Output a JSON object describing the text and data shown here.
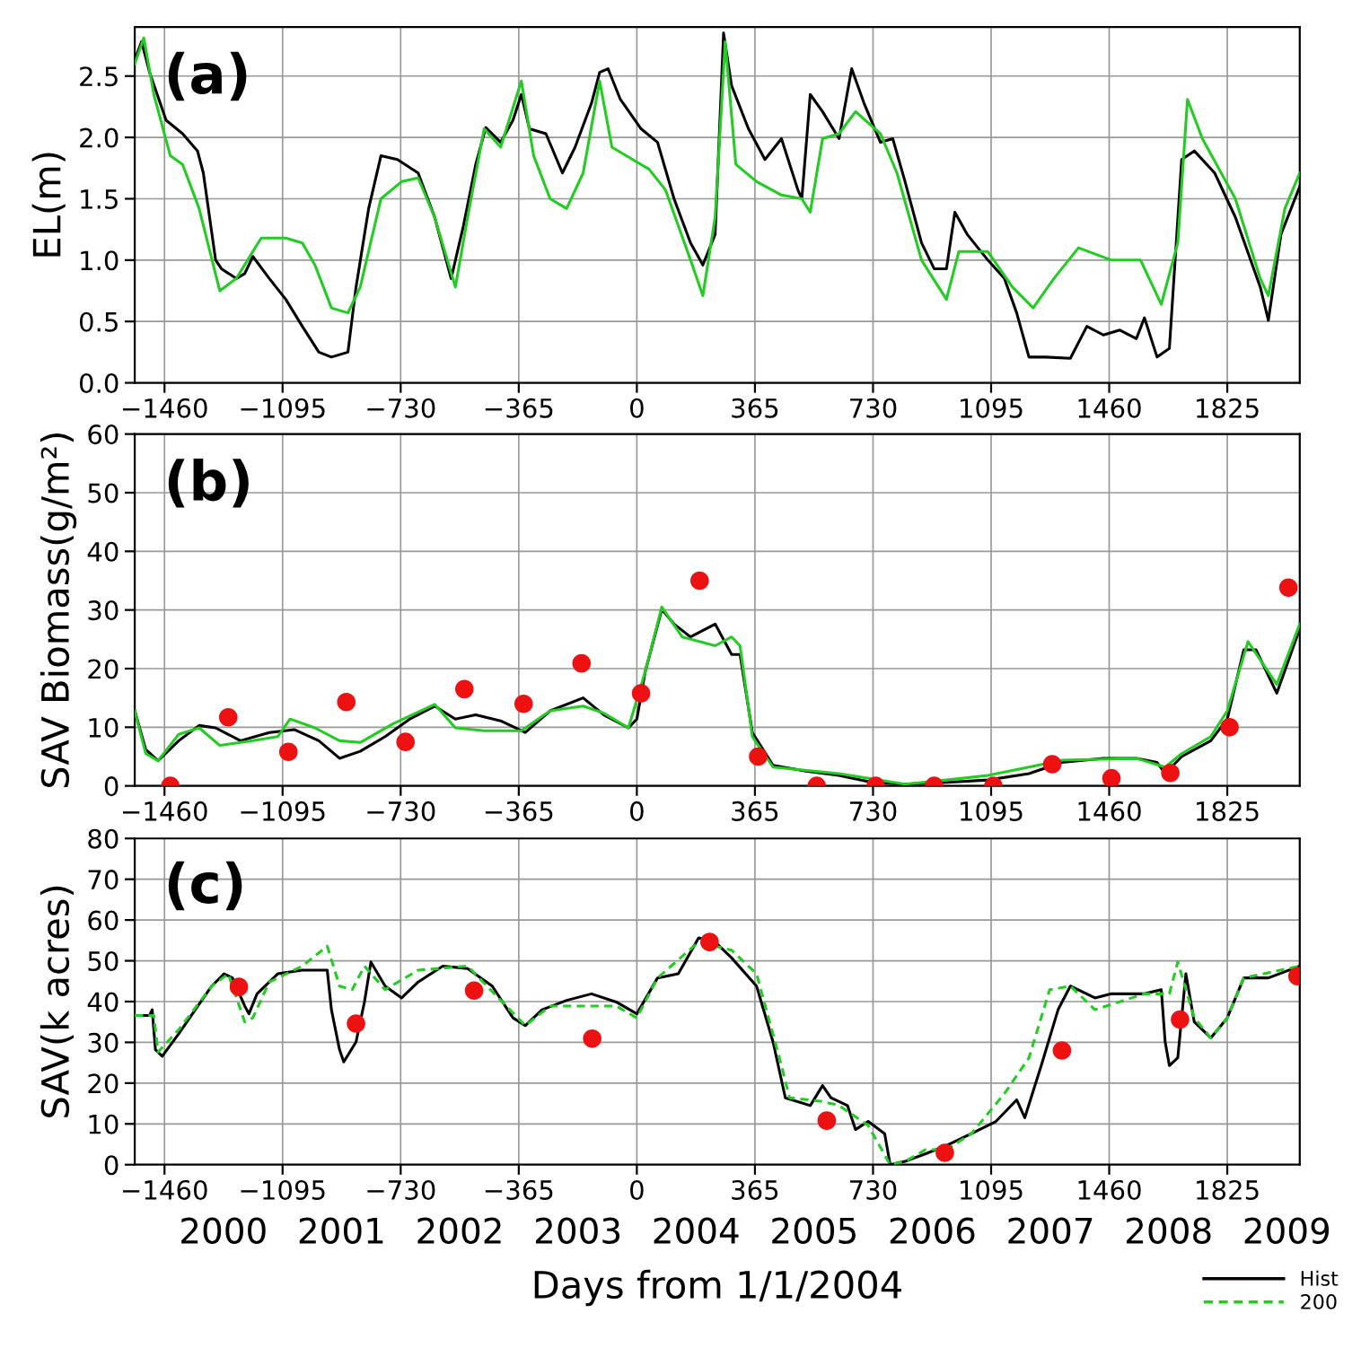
{
  "chart_data": [
    {
      "type": "line",
      "ylabel": "EL(m)",
      "annotations": [
        "(a)"
      ],
      "xlim": [
        -1552,
        2049
      ],
      "ylim": [
        0,
        2.9
      ],
      "xticks": [
        {
          "value": -1460,
          "label": "−1460"
        },
        {
          "value": -1095,
          "label": "−1095"
        },
        {
          "value": -730,
          "label": "−730"
        },
        {
          "value": -365,
          "label": "−365"
        },
        0,
        365,
        730,
        1095,
        1460,
        1825
      ],
      "yticks": [
        {
          "value": 0,
          "label": "0.0"
        },
        0.5,
        {
          "value": 1,
          "label": "1.0"
        },
        1.5,
        {
          "value": 2,
          "label": "2.0"
        },
        2.5
      ],
      "grid": true,
      "series": [
        {
          "color": "#000000",
          "line_style": "solid",
          "x": [
            -1552,
            -1531,
            -1506,
            -1455,
            -1404,
            -1358,
            -1340,
            -1302,
            -1284,
            -1238,
            -1212,
            -1187,
            -1136,
            -1085,
            -1034,
            -983,
            -944,
            -893,
            -868,
            -829,
            -791,
            -740,
            -676,
            -625,
            -574,
            -536,
            -498,
            -467,
            -421,
            -383,
            -357,
            -332,
            -281,
            -230,
            -191,
            -140,
            -115,
            -89,
            -51,
            13,
            64,
            115,
            166,
            204,
            242,
            268,
            293,
            345,
            396,
            447,
            498,
            510,
            536,
            574,
            625,
            664,
            702,
            753,
            791,
            829,
            880,
            919,
            957,
            983,
            1021,
            1085,
            1136,
            1174,
            1212,
            1263,
            1340,
            1391,
            1442,
            1493,
            1544,
            1569,
            1608,
            1646,
            1684,
            1723,
            1786,
            1850,
            1927,
            1952,
            1991,
            2049
          ],
          "values": [
            2.63,
            2.78,
            2.53,
            2.14,
            2.03,
            1.89,
            1.71,
            1.0,
            0.93,
            0.85,
            0.89,
            1.03,
            0.85,
            0.68,
            0.46,
            0.25,
            0.21,
            0.25,
            0.78,
            1.42,
            1.85,
            1.82,
            1.71,
            1.35,
            0.85,
            1.28,
            1.78,
            2.08,
            1.96,
            2.14,
            2.35,
            2.07,
            2.03,
            1.71,
            1.92,
            2.28,
            2.53,
            2.56,
            2.31,
            2.07,
            1.96,
            1.5,
            1.14,
            0.96,
            1.21,
            2.85,
            2.42,
            2.07,
            1.82,
            1.99,
            1.57,
            1.5,
            2.35,
            2.21,
            1.99,
            2.56,
            2.28,
            1.96,
            1.99,
            1.64,
            1.14,
            0.93,
            0.93,
            1.39,
            1.21,
            1.0,
            0.85,
            0.57,
            0.21,
            0.21,
            0.2,
            0.46,
            0.39,
            0.43,
            0.36,
            0.53,
            0.21,
            0.28,
            1.82,
            1.89,
            1.71,
            1.35,
            0.78,
            0.51,
            1.21,
            1.6
          ]
        },
        {
          "color": "#22cc22",
          "line_style": "solid",
          "x": [
            -1552,
            -1524,
            -1493,
            -1442,
            -1404,
            -1353,
            -1289,
            -1238,
            -1187,
            -1161,
            -1085,
            -1034,
            -995,
            -944,
            -893,
            -855,
            -791,
            -727,
            -676,
            -625,
            -561,
            -523,
            -472,
            -421,
            -357,
            -319,
            -268,
            -217,
            -166,
            -115,
            -77,
            -13,
            38,
            89,
            166,
            204,
            242,
            273,
            306,
            370,
            447,
            510,
            536,
            574,
            625,
            676,
            753,
            804,
            880,
            957,
            995,
            1085,
            1161,
            1225,
            1289,
            1365,
            1467,
            1557,
            1621,
            1672,
            1702,
            1748,
            1850,
            1927,
            1952,
            2003,
            2049
          ],
          "values": [
            2.6,
            2.81,
            2.35,
            1.85,
            1.78,
            1.42,
            0.75,
            0.85,
            1.07,
            1.18,
            1.18,
            1.14,
            0.96,
            0.61,
            0.57,
            0.78,
            1.5,
            1.64,
            1.67,
            1.35,
            0.78,
            1.35,
            2.07,
            1.92,
            2.46,
            1.85,
            1.5,
            1.42,
            1.71,
            2.46,
            1.92,
            1.82,
            1.74,
            1.57,
            1.0,
            0.71,
            1.35,
            2.78,
            1.78,
            1.64,
            1.53,
            1.5,
            1.39,
            1.99,
            2.03,
            2.21,
            2.03,
            1.71,
            1.0,
            0.68,
            1.07,
            1.07,
            0.78,
            0.61,
            0.85,
            1.1,
            1.0,
            1.0,
            0.64,
            1.14,
            2.31,
            1.99,
            1.5,
            0.85,
            0.71,
            1.42,
            1.71
          ]
        }
      ]
    },
    {
      "type": "line",
      "ylabel": "SAV Biomass(g/m²)",
      "annotations": [
        "(b)"
      ],
      "xlim": [
        -1552,
        2049
      ],
      "ylim": [
        0,
        60
      ],
      "xticks": [
        {
          "value": -1460,
          "label": "−1460"
        },
        {
          "value": -1095,
          "label": "−1095"
        },
        {
          "value": -730,
          "label": "−730"
        },
        {
          "value": -365,
          "label": "−365"
        },
        0,
        365,
        730,
        1095,
        1460,
        1825
      ],
      "yticks": [
        0,
        10,
        20,
        30,
        40,
        50,
        60
      ],
      "grid": true,
      "series": [
        {
          "color": "#000000",
          "line_style": "solid",
          "x": [
            -1552,
            -1518,
            -1480,
            -1416,
            -1353,
            -1302,
            -1225,
            -1136,
            -1059,
            -983,
            -919,
            -855,
            -778,
            -702,
            -625,
            -561,
            -498,
            -421,
            -345,
            -268,
            -166,
            -102,
            -26,
            0,
            26,
            77,
            115,
            166,
            242,
            293,
            319,
            357,
            421,
            523,
            625,
            727,
            829,
            957,
            1085,
            1212,
            1314,
            1442,
            1544,
            1608,
            1633,
            1684,
            1774,
            1825,
            1876,
            1914,
            1978,
            2049
          ],
          "values": [
            12.8,
            6.2,
            4.3,
            7.7,
            10.3,
            9.9,
            7.7,
            9.1,
            9.6,
            7.7,
            4.7,
            5.9,
            8.4,
            11.4,
            13.6,
            11.4,
            12.1,
            11.1,
            9.1,
            12.8,
            15.0,
            12.1,
            9.9,
            11.4,
            19.5,
            30.1,
            27.6,
            25.4,
            27.6,
            22.4,
            22.4,
            9.1,
            3.5,
            2.5,
            1.8,
            0.6,
            0.3,
            0.6,
            1.0,
            2.1,
            4.0,
            4.7,
            4.7,
            4.0,
            2.1,
            5.0,
            7.7,
            11.4,
            23.2,
            23.2,
            15.8,
            26.8
          ]
        },
        {
          "color": "#22cc22",
          "line_style": "solid",
          "x": [
            -1552,
            -1518,
            -1480,
            -1416,
            -1353,
            -1289,
            -1187,
            -1110,
            -1072,
            -995,
            -919,
            -855,
            -753,
            -625,
            -561,
            -472,
            -357,
            -268,
            -166,
            -102,
            -26,
            26,
            77,
            140,
            242,
            293,
            319,
            357,
            421,
            625,
            829,
            957,
            1085,
            1212,
            1314,
            1544,
            1633,
            1684,
            1774,
            1825,
            1889,
            1978,
            2049
          ],
          "values": [
            12.8,
            5.5,
            4.3,
            8.8,
            9.9,
            6.9,
            7.7,
            8.4,
            11.4,
            9.9,
            7.7,
            7.4,
            10.6,
            13.9,
            9.9,
            9.4,
            9.4,
            12.8,
            13.6,
            12.4,
            9.9,
            19.5,
            30.5,
            25.4,
            23.9,
            25.4,
            23.9,
            8.4,
            3.2,
            2.1,
            0.3,
            1.0,
            1.8,
            3.2,
            4.4,
            4.7,
            3.2,
            5.5,
            8.4,
            12.8,
            24.6,
            17.3,
            27.6
          ]
        },
        {
          "type": "scatter",
          "marker": "circle",
          "color": "#ee1111",
          "x": [
            -1442,
            -1263,
            -1077,
            -898,
            -715,
            -533,
            -350,
            -171,
            13,
            194,
            375,
            556,
            738,
            919,
            1102,
            1284,
            1467,
            1649,
            1832,
            2014
          ],
          "values": [
            0,
            11.7,
            5.8,
            14.3,
            7.5,
            16.5,
            14.0,
            20.9,
            15.8,
            35.0,
            5.0,
            0,
            0,
            0,
            0,
            3.7,
            1.3,
            2.2,
            10.0,
            33.8
          ]
        }
      ]
    },
    {
      "type": "line",
      "ylabel": "SAV(k acres)",
      "xlabel": "Days from 1/1/2004",
      "annotations": [
        "(c)"
      ],
      "xlim": [
        -1552,
        2049
      ],
      "ylim": [
        0,
        80
      ],
      "xticks": [
        {
          "value": -1460,
          "label": "−1460"
        },
        {
          "value": -1095,
          "label": "−1095"
        },
        {
          "value": -730,
          "label": "−730"
        },
        {
          "value": -365,
          "label": "−365"
        },
        0,
        365,
        730,
        1095,
        1460,
        1825
      ],
      "x2lim": [
        1999.25,
        2009.11
      ],
      "x2ticks": [
        2000,
        2001,
        2002,
        2003,
        2004,
        2005,
        2006,
        2007,
        2008,
        2009
      ],
      "yticks": [
        0,
        10,
        20,
        30,
        40,
        50,
        60,
        70,
        80
      ],
      "grid": true,
      "legend": "bottom right",
      "series": [
        {
          "name": "Hist",
          "color": "#000000",
          "line_style": "solid",
          "x": [
            -1552,
            -1506,
            -1498,
            -1488,
            -1467,
            -1416,
            -1365,
            -1314,
            -1276,
            -1250,
            -1212,
            -1199,
            -1174,
            -1110,
            -1034,
            -957,
            -944,
            -919,
            -906,
            -868,
            -842,
            -822,
            -778,
            -727,
            -676,
            -600,
            -523,
            -447,
            -383,
            -345,
            -293,
            -217,
            -140,
            -64,
            0,
            64,
            128,
            191,
            242,
            293,
            370,
            421,
            459,
            536,
            574,
            600,
            651,
            676,
            715,
            766,
            783,
            829,
            893,
            957,
            1034,
            1110,
            1174,
            1199,
            1250,
            1302,
            1340,
            1416,
            1467,
            1569,
            1621,
            1633,
            1646,
            1672,
            1697,
            1723,
            1774,
            1825,
            1876,
            1952,
            2049
          ],
          "values": [
            36.6,
            36.6,
            38.0,
            28.2,
            26.6,
            32.1,
            38.0,
            43.8,
            46.8,
            45.8,
            38.9,
            37.0,
            41.9,
            46.8,
            47.7,
            47.7,
            38.0,
            28.2,
            25.2,
            30.1,
            39.9,
            49.7,
            43.8,
            40.9,
            44.8,
            48.7,
            48.1,
            43.8,
            36.0,
            34.1,
            38.0,
            40.3,
            41.9,
            39.9,
            37.0,
            45.8,
            46.8,
            55.6,
            54.6,
            50.7,
            43.8,
            30.1,
            16.4,
            14.5,
            19.4,
            16.4,
            14.5,
            8.6,
            10.6,
            7.6,
            0,
            0.8,
            2.7,
            4.7,
            7.6,
            10.6,
            15.9,
            11.5,
            24.3,
            38.0,
            43.8,
            40.9,
            41.9,
            41.9,
            42.9,
            30.1,
            24.3,
            26.2,
            46.8,
            35.0,
            31.1,
            36.0,
            45.8,
            45.8,
            48.7
          ]
        },
        {
          "name": "200",
          "color": "#22cc22",
          "line_style": "dashed",
          "x": [
            -1552,
            -1493,
            -1480,
            -1416,
            -1314,
            -1263,
            -1212,
            -1187,
            -1136,
            -1034,
            -957,
            -919,
            -880,
            -842,
            -778,
            -676,
            -523,
            -345,
            -268,
            -140,
            -64,
            0,
            64,
            191,
            293,
            370,
            447,
            472,
            574,
            625,
            715,
            783,
            829,
            893,
            957,
            1034,
            1136,
            1212,
            1276,
            1340,
            1416,
            1569,
            1646,
            1672,
            1723,
            1774,
            1825,
            1876,
            2049
          ],
          "values": [
            36.6,
            36.6,
            27.6,
            33.1,
            43.8,
            46.8,
            35.0,
            36.0,
            44.8,
            48.7,
            53.6,
            43.8,
            42.9,
            48.7,
            42.9,
            47.7,
            48.7,
            34.1,
            38.9,
            38.9,
            38.9,
            36.0,
            45.8,
            54.6,
            52.6,
            46.8,
            24.3,
            16.4,
            15.5,
            14.5,
            9.6,
            0,
            0.8,
            3.7,
            3.7,
            7.6,
            17.4,
            26.2,
            42.9,
            43.8,
            38.0,
            41.9,
            41.9,
            49.7,
            36.0,
            31.1,
            36.0,
            45.8,
            48.7
          ]
        },
        {
          "type": "scatter",
          "marker": "circle",
          "color": "#ee1111",
          "x": [
            -1230,
            -868,
            -503,
            -138,
            225,
            587,
            952,
            1314,
            1679,
            2042
          ],
          "values": [
            43.6,
            34.6,
            42.7,
            30.9,
            54.6,
            10.8,
            2.9,
            28.0,
            35.6,
            46.2
          ]
        }
      ]
    }
  ]
}
